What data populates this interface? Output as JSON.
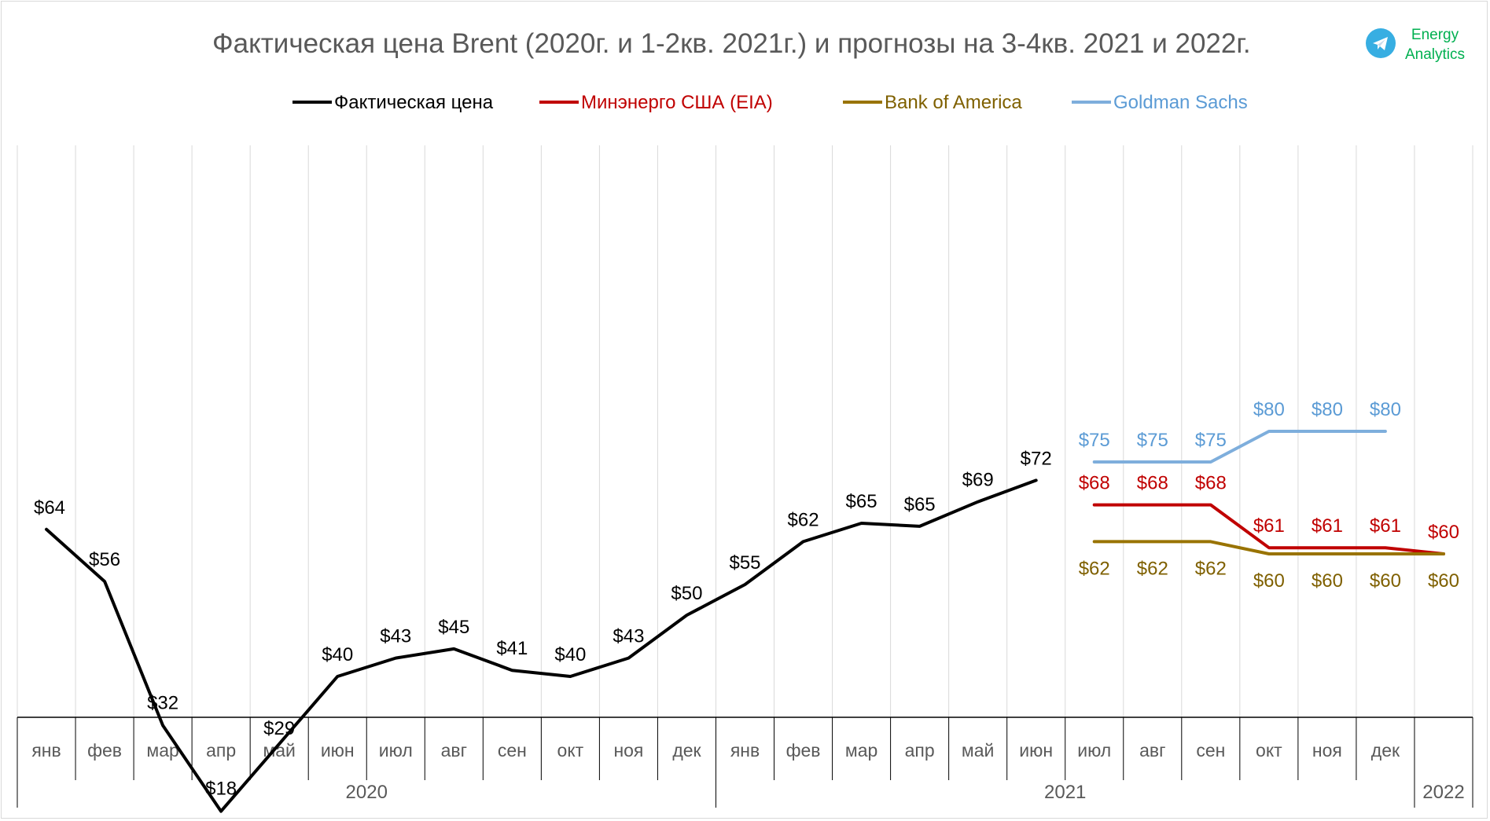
{
  "title": "Фактическая цена Brent (2020г. и 1-2кв. 2021г.) и прогнозы на 3-4кв. 2021 и 2022г.",
  "logo": {
    "line1": "Energy",
    "line2": "Analytics",
    "icon": "telegram-icon",
    "color": "#00b050"
  },
  "chart_data": {
    "type": "line",
    "title": "Фактическая цена Brent (2020г. и 1-2кв. 2021г.) и прогнозы на 3-4кв. 2021 и 2022г.",
    "categories": [
      "янв",
      "фев",
      "мар",
      "апр",
      "май",
      "июн",
      "июл",
      "авг",
      "сен",
      "окт",
      "ноя",
      "дек",
      "янв",
      "фев",
      "мар",
      "апр",
      "май",
      "июн",
      "июл",
      "авг",
      "сен",
      "окт",
      "ноя",
      "дек",
      ""
    ],
    "year_groups": [
      {
        "label": "2020",
        "start": 0,
        "end": 11
      },
      {
        "label": "2021",
        "start": 12,
        "end": 23
      },
      {
        "label": "2022",
        "start": 24,
        "end": 24
      }
    ],
    "ylim": [
      0,
      100
    ],
    "grid": "vertical",
    "legend_position": "top",
    "series": [
      {
        "name": "Фактическая цена",
        "color": "#000000",
        "label_color": "#000000",
        "points": [
          {
            "i": 0,
            "value": 64,
            "label": "$64"
          },
          {
            "i": 1,
            "value": 55.5,
            "label": "$56"
          },
          {
            "i": 2,
            "value": 32,
            "label": "$32"
          },
          {
            "i": 3,
            "value": 18,
            "label": "$18"
          },
          {
            "i": 4,
            "value": 29,
            "label": "$29"
          },
          {
            "i": 5,
            "value": 40,
            "label": "$40"
          },
          {
            "i": 6,
            "value": 43,
            "label": "$43"
          },
          {
            "i": 7,
            "value": 44.5,
            "label": "$45"
          },
          {
            "i": 8,
            "value": 41,
            "label": "$41"
          },
          {
            "i": 9,
            "value": 40,
            "label": "$40"
          },
          {
            "i": 10,
            "value": 43,
            "label": "$43"
          },
          {
            "i": 11,
            "value": 50,
            "label": "$50"
          },
          {
            "i": 12,
            "value": 55,
            "label": "$55"
          },
          {
            "i": 13,
            "value": 62,
            "label": "$62"
          },
          {
            "i": 14,
            "value": 65,
            "label": "$65"
          },
          {
            "i": 15,
            "value": 64.5,
            "label": "$65"
          },
          {
            "i": 16,
            "value": 68.5,
            "label": "$69"
          },
          {
            "i": 17,
            "value": 72,
            "label": "$72"
          }
        ]
      },
      {
        "name": "Минэнерго США (EIA)",
        "color": "#c00000",
        "label_color": "#c00000",
        "points": [
          {
            "i": 18,
            "value": 68,
            "label": "$68"
          },
          {
            "i": 19,
            "value": 68,
            "label": "$68"
          },
          {
            "i": 20,
            "value": 68,
            "label": "$68"
          },
          {
            "i": 21,
            "value": 61,
            "label": "$61"
          },
          {
            "i": 22,
            "value": 61,
            "label": "$61"
          },
          {
            "i": 23,
            "value": 61,
            "label": "$61"
          },
          {
            "i": 24,
            "value": 60,
            "label": "$60"
          }
        ]
      },
      {
        "name": "Bank of America",
        "color": "#997300",
        "label_color": "#7f6000",
        "points": [
          {
            "i": 18,
            "value": 62,
            "label": "$62"
          },
          {
            "i": 19,
            "value": 62,
            "label": "$62"
          },
          {
            "i": 20,
            "value": 62,
            "label": "$62"
          },
          {
            "i": 21,
            "value": 60,
            "label": "$60"
          },
          {
            "i": 22,
            "value": 60,
            "label": "$60"
          },
          {
            "i": 23,
            "value": 60,
            "label": "$60"
          },
          {
            "i": 24,
            "value": 60,
            "label": "$60"
          }
        ]
      },
      {
        "name": "Goldman Sachs",
        "color": "#7eaedc",
        "label_color": "#5b9bd5",
        "points": [
          {
            "i": 18,
            "value": 75,
            "label": "$75"
          },
          {
            "i": 19,
            "value": 75,
            "label": "$75"
          },
          {
            "i": 20,
            "value": 75,
            "label": "$75"
          },
          {
            "i": 21,
            "value": 80,
            "label": "$80"
          },
          {
            "i": 22,
            "value": 80,
            "label": "$80"
          },
          {
            "i": 23,
            "value": 80,
            "label": "$80"
          }
        ]
      }
    ]
  }
}
